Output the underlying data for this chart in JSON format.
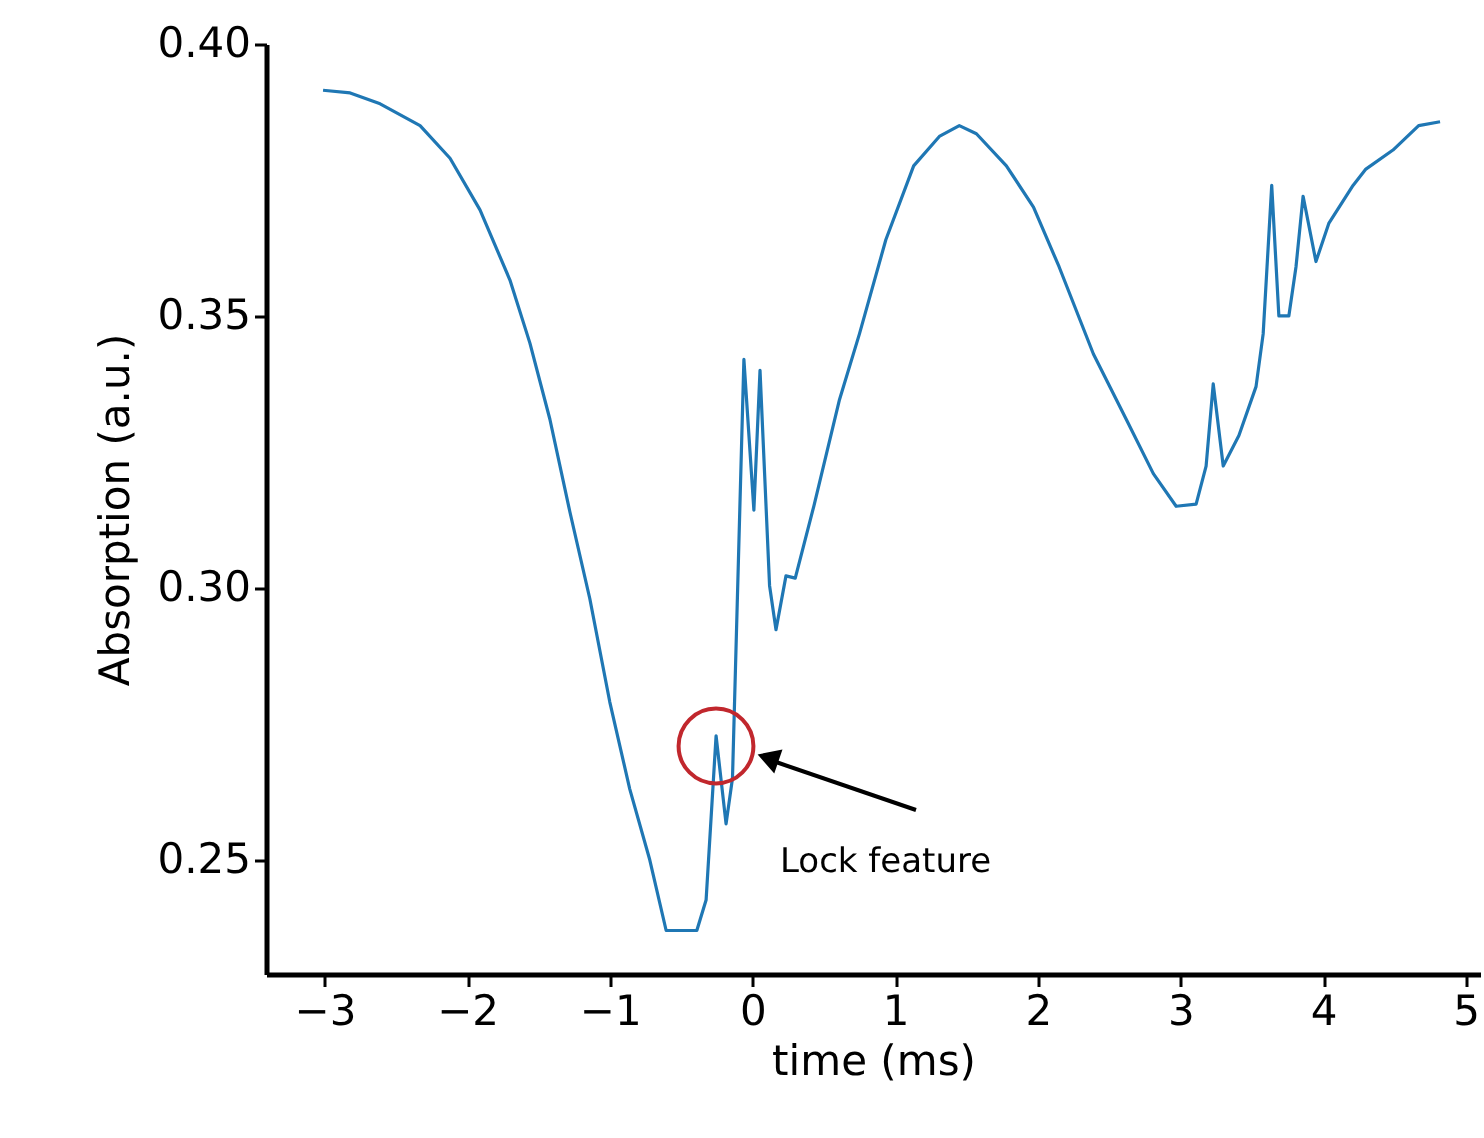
{
  "chart_data": {
    "type": "line",
    "xlabel": "time (ms)",
    "ylabel": "Absorption (a.u.)",
    "x": [
      -3.01,
      -2.82,
      -2.61,
      -2.33,
      -2.12,
      -1.91,
      -1.7,
      -1.56,
      -1.42,
      -1.28,
      -1.14,
      -1.0,
      -0.86,
      -0.72,
      -0.605,
      -0.39,
      -0.325,
      -0.255,
      -0.185,
      -0.14,
      -0.06,
      0.01,
      0.053,
      0.12,
      0.165,
      0.235,
      0.3,
      0.43,
      0.61,
      0.75,
      0.935,
      1.13,
      1.31,
      1.45,
      1.57,
      1.78,
      1.97,
      2.15,
      2.39,
      2.62,
      2.81,
      2.97,
      3.11,
      3.18,
      3.23,
      3.3,
      3.41,
      3.53,
      3.58,
      3.64,
      3.69,
      3.76,
      3.81,
      3.86,
      3.95,
      4.04,
      4.21,
      4.3,
      4.49,
      4.67,
      4.82
    ],
    "series": [
      {
        "color": "#1f77b4",
        "values": [
          0.3915,
          0.391,
          0.389,
          0.385,
          0.379,
          0.3695,
          0.3566,
          0.345,
          0.331,
          0.314,
          0.298,
          0.279,
          0.263,
          0.25,
          0.237,
          0.237,
          0.2426,
          0.2728,
          0.2566,
          0.265,
          0.342,
          0.3143,
          0.34,
          0.3004,
          0.2923,
          0.3022,
          0.3018,
          0.315,
          0.3346,
          0.3467,
          0.364,
          0.3776,
          0.383,
          0.385,
          0.3835,
          0.3776,
          0.37,
          0.359,
          0.343,
          0.331,
          0.321,
          0.315,
          0.3154,
          0.3224,
          0.3375,
          0.3224,
          0.328,
          0.337,
          0.3467,
          0.374,
          0.35,
          0.35,
          0.359,
          0.372,
          0.36,
          0.367,
          0.374,
          0.377,
          0.3805,
          0.385,
          0.3857
        ]
      }
    ],
    "xlim": [
      -3.41,
      5.1
    ],
    "ylim": [
      0.229,
      0.4
    ],
    "xticks": [
      {
        "value": -3,
        "label": "−3"
      },
      {
        "value": -2,
        "label": "−2"
      },
      {
        "value": -1,
        "label": "−1"
      },
      {
        "value": 0,
        "label": "0"
      },
      {
        "value": 1,
        "label": "1"
      },
      {
        "value": 2,
        "label": "2"
      },
      {
        "value": 3,
        "label": "3"
      },
      {
        "value": 4,
        "label": "4"
      },
      {
        "value": 5,
        "label": "5"
      }
    ],
    "yticks": [
      0.25,
      {
        "value": 0.3,
        "label": "0.30"
      },
      0.35,
      {
        "value": 0.4,
        "label": "0.40"
      }
    ],
    "grid": false,
    "marker": "none",
    "line_style": "solid",
    "annotations": [
      "Lock feature"
    ]
  }
}
